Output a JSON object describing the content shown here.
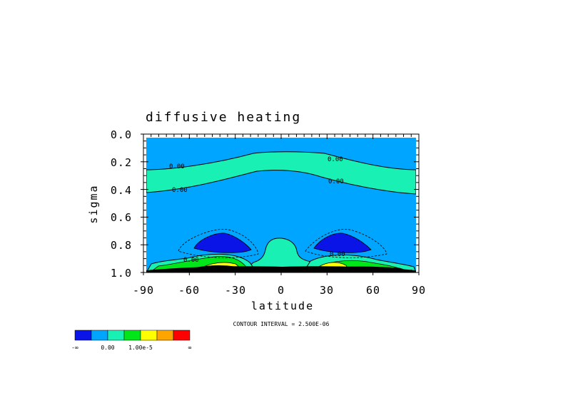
{
  "chart_data": {
    "type": "contour",
    "title": "diffusive heating",
    "xlabel": "latitude",
    "ylabel": "sigma",
    "xlim": [
      -90,
      90
    ],
    "ylim": [
      1.0,
      0.0
    ],
    "x_ticks": [
      "-90",
      "-60",
      "-30",
      "0",
      "30",
      "60",
      "90"
    ],
    "y_ticks": [
      "0.0",
      "0.2",
      "0.4",
      "0.6",
      "0.8",
      "1.0"
    ],
    "contour_interval_text": "CONTOUR INTERVAL = 2.500E-06",
    "contour_labels": [
      "0.00",
      "0.00",
      "0.00",
      "0.00",
      "0.00",
      "0.00"
    ],
    "legend": {
      "colors": [
        "#0a14e6",
        "#00a5ff",
        "#19f0b4",
        "#00e619",
        "#ffff00",
        "#ffa500",
        "#ff0000"
      ],
      "labels": [
        "-∞",
        "0.00",
        "1.00e-5",
        "∞"
      ]
    }
  }
}
